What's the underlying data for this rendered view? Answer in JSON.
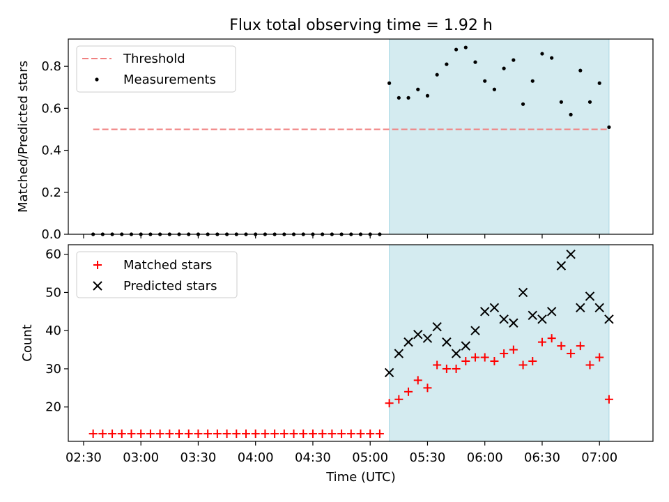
{
  "figure": {
    "title": "Flux total observing time = 1.92 h"
  },
  "chart_data": [
    {
      "type": "scatter",
      "ylabel": "Matched/Predicted stars",
      "ylim": [
        0,
        0.93
      ],
      "xlim": [
        "02:22",
        "07:28"
      ],
      "yticks": [
        0.0,
        0.2,
        0.4,
        0.6,
        0.8
      ],
      "ytick_labels": [
        "0.0",
        "0.2",
        "0.4",
        "0.6",
        "0.8"
      ],
      "highlight_span": {
        "from": "05:10",
        "to": "07:05",
        "color": "#d4ebf0"
      },
      "threshold": {
        "name": "Threshold",
        "value": 0.5,
        "from": "02:35",
        "to": "07:05",
        "color": "#f08080",
        "style": "dashed"
      },
      "legend": {
        "position": "upper-left",
        "entries": [
          "Threshold",
          "Measurements"
        ]
      },
      "series": [
        {
          "name": "Measurements",
          "marker": "dot",
          "color": "#000000",
          "x": [
            "02:35",
            "02:40",
            "02:45",
            "02:50",
            "02:55",
            "03:00",
            "03:05",
            "03:10",
            "03:15",
            "03:20",
            "03:25",
            "03:30",
            "03:35",
            "03:40",
            "03:45",
            "03:50",
            "03:55",
            "04:00",
            "04:05",
            "04:10",
            "04:15",
            "04:20",
            "04:25",
            "04:30",
            "04:35",
            "04:40",
            "04:45",
            "04:50",
            "04:55",
            "05:00",
            "05:05",
            "05:10",
            "05:15",
            "05:20",
            "05:25",
            "05:30",
            "05:35",
            "05:40",
            "05:45",
            "05:50",
            "05:55",
            "06:00",
            "06:05",
            "06:10",
            "06:15",
            "06:20",
            "06:25",
            "06:30",
            "06:35",
            "06:40",
            "06:45",
            "06:50",
            "06:55",
            "07:00",
            "07:05"
          ],
          "y": [
            0,
            0,
            0,
            0,
            0,
            0,
            0,
            0,
            0,
            0,
            0,
            0,
            0,
            0,
            0,
            0,
            0,
            0,
            0,
            0,
            0,
            0,
            0,
            0,
            0,
            0,
            0,
            0,
            0,
            0,
            0,
            0.72,
            0.65,
            0.65,
            0.69,
            0.66,
            0.76,
            0.81,
            0.88,
            0.89,
            0.82,
            0.73,
            0.69,
            0.79,
            0.83,
            0.62,
            0.73,
            0.86,
            0.84,
            0.63,
            0.57,
            0.78,
            0.63,
            0.72,
            0.51
          ]
        }
      ]
    },
    {
      "type": "scatter",
      "xlabel": "Time (UTC)",
      "ylabel": "Count",
      "ylim": [
        11,
        62.5
      ],
      "xlim": [
        "02:22",
        "07:28"
      ],
      "yticks": [
        20,
        30,
        40,
        50,
        60
      ],
      "ytick_labels": [
        "20",
        "30",
        "40",
        "50",
        "60"
      ],
      "xticks": [
        "02:30",
        "03:00",
        "03:30",
        "04:00",
        "04:30",
        "05:00",
        "05:30",
        "06:00",
        "06:30",
        "07:00"
      ],
      "xtick_labels": [
        "02:30",
        "03:00",
        "03:30",
        "04:00",
        "04:30",
        "05:00",
        "05:30",
        "06:00",
        "06:30",
        "07:00"
      ],
      "highlight_span": {
        "from": "05:10",
        "to": "07:05",
        "color": "#d4ebf0"
      },
      "legend": {
        "position": "upper-left",
        "entries": [
          "Matched stars",
          "Predicted stars"
        ]
      },
      "series": [
        {
          "name": "Matched stars",
          "marker": "plus",
          "color": "#ff0000",
          "x": [
            "02:35",
            "02:40",
            "02:45",
            "02:50",
            "02:55",
            "03:00",
            "03:05",
            "03:10",
            "03:15",
            "03:20",
            "03:25",
            "03:30",
            "03:35",
            "03:40",
            "03:45",
            "03:50",
            "03:55",
            "04:00",
            "04:05",
            "04:10",
            "04:15",
            "04:20",
            "04:25",
            "04:30",
            "04:35",
            "04:40",
            "04:45",
            "04:50",
            "04:55",
            "05:00",
            "05:05",
            "05:10",
            "05:15",
            "05:20",
            "05:25",
            "05:30",
            "05:35",
            "05:40",
            "05:45",
            "05:50",
            "05:55",
            "06:00",
            "06:05",
            "06:10",
            "06:15",
            "06:20",
            "06:25",
            "06:30",
            "06:35",
            "06:40",
            "06:45",
            "06:50",
            "06:55",
            "07:00",
            "07:05"
          ],
          "y": [
            13,
            13,
            13,
            13,
            13,
            13,
            13,
            13,
            13,
            13,
            13,
            13,
            13,
            13,
            13,
            13,
            13,
            13,
            13,
            13,
            13,
            13,
            13,
            13,
            13,
            13,
            13,
            13,
            13,
            13,
            13,
            21,
            22,
            24,
            27,
            25,
            31,
            30,
            30,
            32,
            33,
            33,
            32,
            34,
            35,
            31,
            32,
            37,
            38,
            36,
            34,
            36,
            31,
            33,
            22
          ]
        },
        {
          "name": "Predicted stars",
          "marker": "x",
          "color": "#000000",
          "x": [
            "05:10",
            "05:15",
            "05:20",
            "05:25",
            "05:30",
            "05:35",
            "05:40",
            "05:45",
            "05:50",
            "05:55",
            "06:00",
            "06:05",
            "06:10",
            "06:15",
            "06:20",
            "06:25",
            "06:30",
            "06:35",
            "06:40",
            "06:45",
            "06:50",
            "06:55",
            "07:00",
            "07:05"
          ],
          "y": [
            29,
            34,
            37,
            39,
            38,
            41,
            37,
            34,
            36,
            40,
            45,
            46,
            43,
            42,
            50,
            44,
            43,
            45,
            57,
            60,
            46,
            49,
            46,
            43
          ]
        }
      ]
    }
  ]
}
